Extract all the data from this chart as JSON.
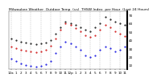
{
  "title": "Milwaukee Weather  Outdoor Temp  (vs)  THSW Index  per Hour  (Last 24 Hours)",
  "bg_color": "#ffffff",
  "grid_color": "#999999",
  "series": [
    {
      "name": "outdoor_temp",
      "color": "#000000",
      "values": [
        42,
        40,
        38,
        37,
        36,
        35,
        36,
        37,
        40,
        48,
        55,
        62,
        60,
        58,
        55,
        52,
        50,
        55,
        60,
        68,
        65,
        62,
        60,
        58
      ]
    },
    {
      "name": "thsw",
      "color": "#cc0000",
      "values": [
        32,
        30,
        28,
        27,
        26,
        25,
        26,
        28,
        33,
        42,
        52,
        60,
        58,
        54,
        50,
        46,
        44,
        46,
        52,
        58,
        55,
        50,
        48,
        45
      ]
    },
    {
      "name": "blue_series",
      "color": "#0000dd",
      "values": [
        18,
        15,
        12,
        10,
        9,
        8,
        9,
        11,
        15,
        24,
        32,
        38,
        36,
        32,
        28,
        22,
        20,
        22,
        28,
        32,
        30,
        26,
        28,
        32
      ]
    }
  ],
  "ylim": [
    5,
    75
  ],
  "ytick_positions": [
    10,
    20,
    30,
    40,
    50,
    60,
    70
  ],
  "ytick_labels": [
    "10",
    "20",
    "30",
    "40",
    "50",
    "60",
    "70"
  ],
  "x_labels": [
    "12a",
    "1",
    "2",
    "3",
    "4",
    "5",
    "6",
    "7",
    "8",
    "9",
    "10",
    "11",
    "12p",
    "1",
    "2",
    "3",
    "4",
    "5",
    "6",
    "7",
    "8",
    "9",
    "10",
    "11"
  ],
  "grid_interval": 2,
  "title_fontsize": 3.2,
  "tick_fontsize": 3.0,
  "marker_size": 1.0
}
